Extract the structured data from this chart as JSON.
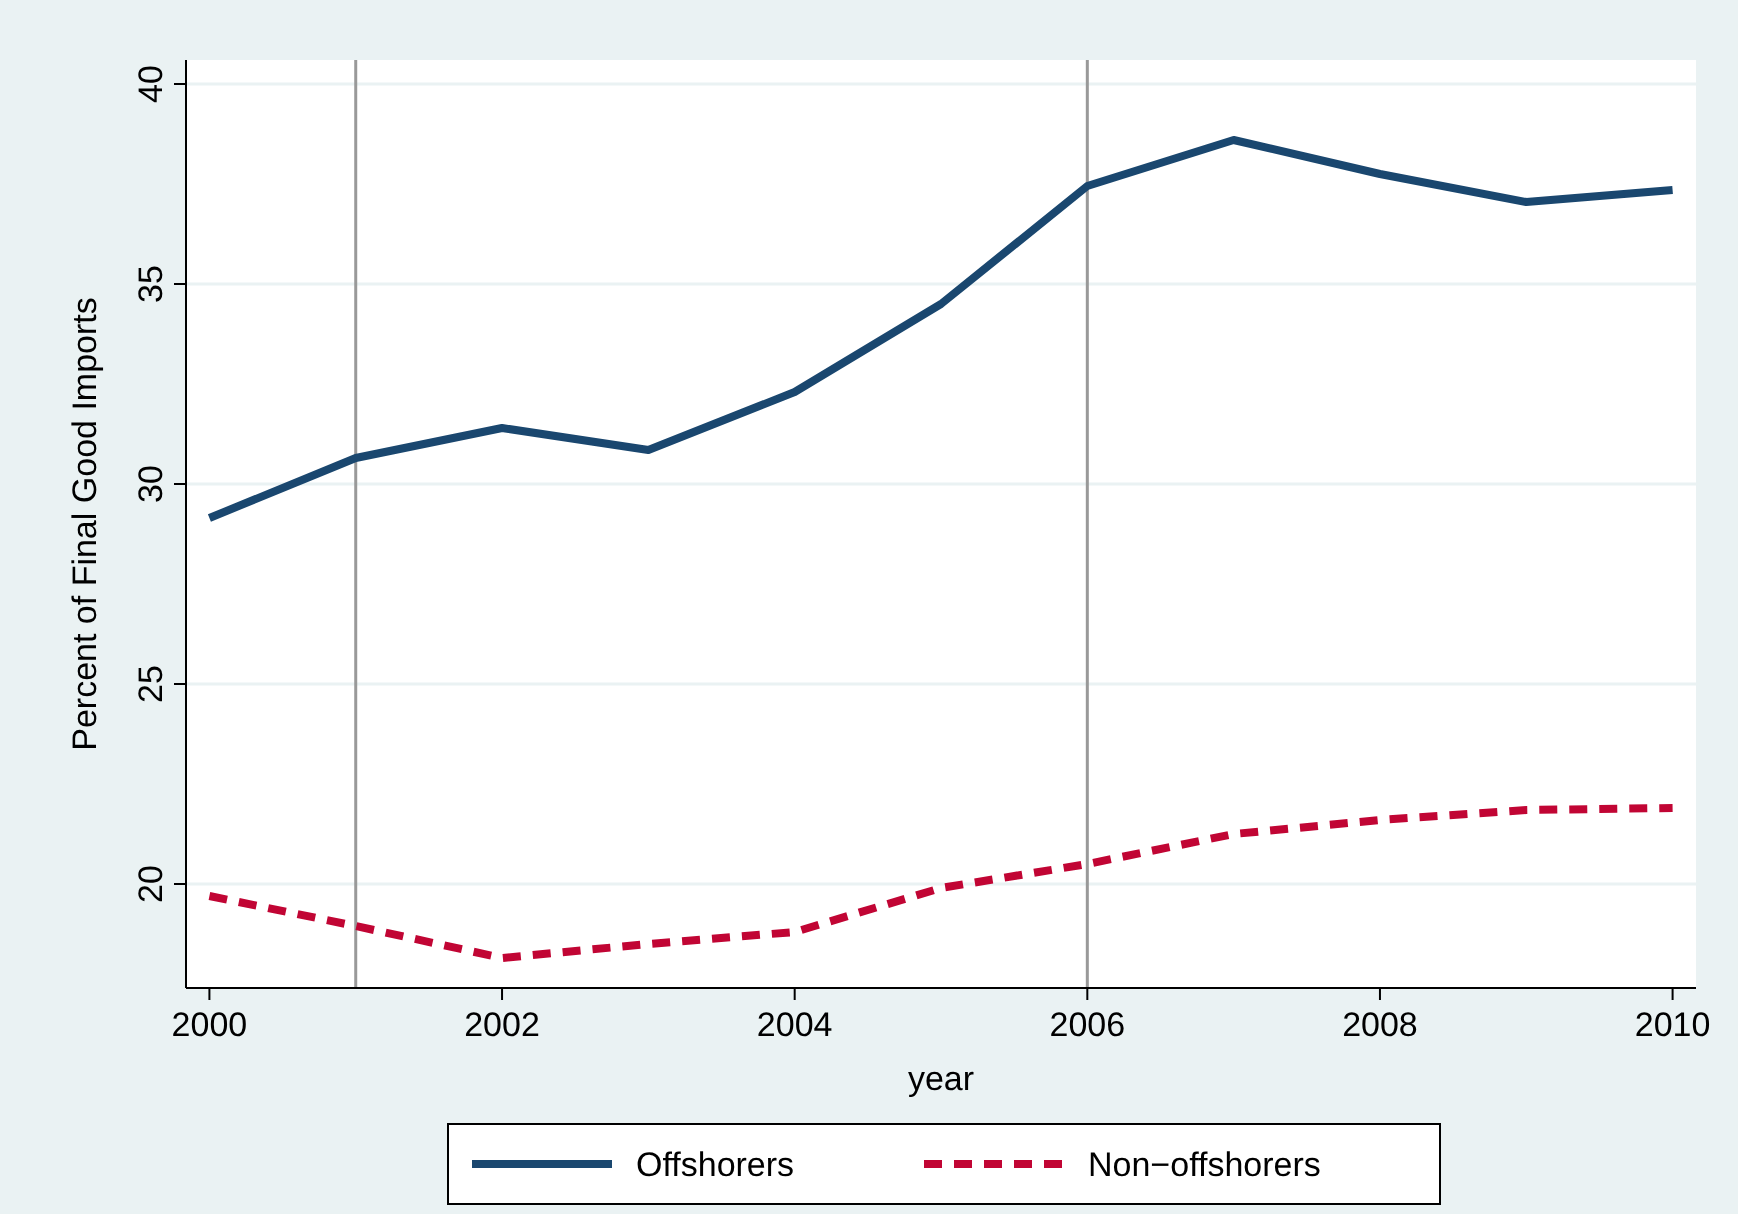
{
  "chart_data": {
    "type": "line",
    "xlabel": "year",
    "ylabel": "Percent of Final Good Imports",
    "x": [
      2000,
      2001,
      2002,
      2003,
      2004,
      2005,
      2006,
      2007,
      2008,
      2009,
      2010
    ],
    "series": [
      {
        "name": "Offshorers",
        "color": "#1a476f",
        "line_style": "solid",
        "values": [
          29.15,
          30.65,
          31.4,
          30.85,
          32.3,
          34.5,
          37.45,
          38.6,
          37.75,
          37.05,
          37.35
        ]
      },
      {
        "name": "Non−offshorers",
        "color": "#c10534",
        "line_style": "dashed",
        "values": [
          19.7,
          18.95,
          18.15,
          18.5,
          18.8,
          19.9,
          20.5,
          21.25,
          21.6,
          21.85,
          21.9
        ]
      }
    ],
    "xlim": [
      1999.84,
      2010.16
    ],
    "xticks": [
      2000,
      2002,
      2004,
      2006,
      2008,
      2010
    ],
    "ylim": [
      17.4,
      40.6
    ],
    "yticks": [
      20,
      25,
      30,
      35,
      40
    ],
    "grid": "y",
    "legend": "bottom",
    "marker": "none",
    "ref_lines": [
      {
        "axis": "x",
        "value": 2001,
        "color": "#999999"
      },
      {
        "axis": "x",
        "value": 2006,
        "color": "#999999"
      }
    ]
  }
}
